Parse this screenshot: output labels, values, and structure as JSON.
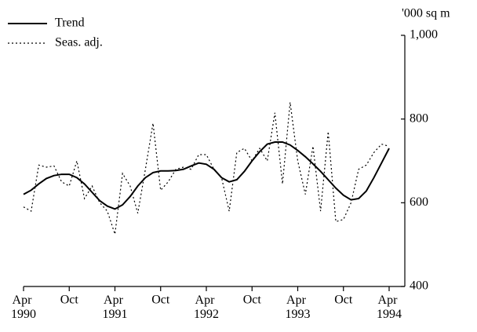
{
  "chart_data": {
    "type": "line",
    "y_label": "'000 sq m",
    "categories": [
      "Apr 1990",
      null,
      null,
      null,
      null,
      null,
      "Oct",
      null,
      null,
      null,
      null,
      null,
      "Apr 1991",
      null,
      null,
      null,
      null,
      null,
      "Oct",
      null,
      null,
      null,
      null,
      null,
      "Apr 1992",
      null,
      null,
      null,
      null,
      null,
      "Oct",
      null,
      null,
      null,
      null,
      null,
      "Apr 1993",
      null,
      null,
      null,
      null,
      null,
      "Oct",
      null,
      null,
      null,
      null,
      null,
      "Apr 1994"
    ],
    "series": [
      {
        "name": "Trend",
        "color": "#000000",
        "dash": "solid",
        "values": [
          620,
          630,
          645,
          658,
          665,
          668,
          668,
          660,
          645,
          625,
          605,
          592,
          585,
          595,
          615,
          640,
          660,
          672,
          676,
          676,
          677,
          680,
          688,
          695,
          692,
          680,
          660,
          650,
          655,
          675,
          700,
          722,
          740,
          745,
          745,
          738,
          725,
          710,
          693,
          675,
          655,
          635,
          618,
          607,
          610,
          628,
          660,
          695,
          730
        ]
      },
      {
        "name": "Seas. adj.",
        "color": "#000000",
        "dash": "dotted",
        "values": [
          590,
          580,
          690,
          685,
          688,
          650,
          640,
          700,
          610,
          640,
          600,
          580,
          525,
          670,
          640,
          575,
          680,
          790,
          630,
          650,
          680,
          685,
          680,
          715,
          715,
          680,
          660,
          580,
          720,
          730,
          700,
          730,
          700,
          815,
          645,
          840,
          700,
          620,
          735,
          580,
          770,
          555,
          560,
          600,
          680,
          690,
          720,
          740,
          735
        ]
      }
    ],
    "ylim": [
      400,
      1000
    ],
    "yticks": [
      400,
      600,
      800,
      {
        "value": 1000,
        "label": "1,000"
      }
    ],
    "axis_side": "right",
    "legend": "top-left"
  }
}
